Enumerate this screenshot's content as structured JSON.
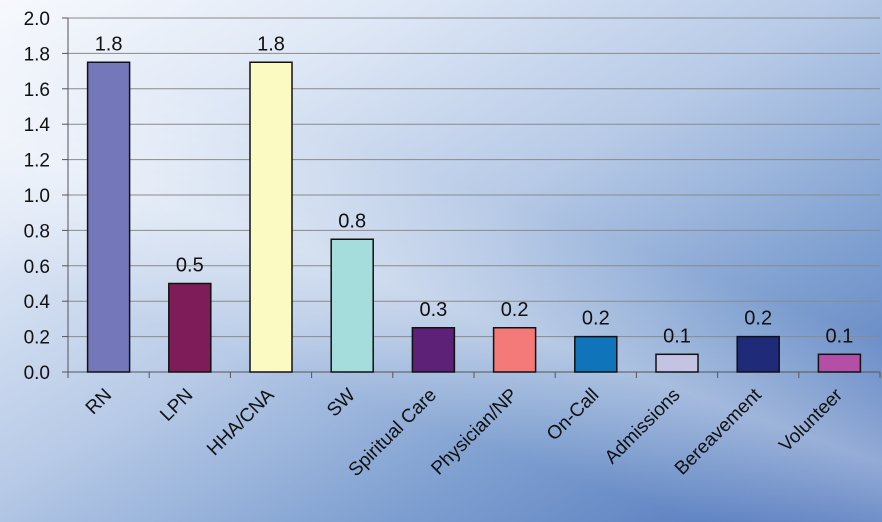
{
  "chart_data": {
    "type": "bar",
    "categories": [
      "RN",
      "LPN",
      "HHA/CNA",
      "SW",
      "Spiritual Care",
      "Physician/NP",
      "On-Call",
      "Admissions",
      "Bereavement",
      "Volunteer"
    ],
    "values": [
      1.75,
      0.5,
      1.75,
      0.75,
      0.25,
      0.25,
      0.2,
      0.1,
      0.2,
      0.1
    ],
    "data_labels": [
      "1.8",
      "0.5",
      "1.8",
      "0.8",
      "0.3",
      "0.2",
      "0.2",
      "0.1",
      "0.2",
      "0.1"
    ],
    "colors": [
      "#7478bb",
      "#7e1c5a",
      "#fbfac3",
      "#a4dddc",
      "#5d2177",
      "#f47a7a",
      "#0f74b9",
      "#c5c3e4",
      "#1f2a78",
      "#b44fa7"
    ],
    "yticks": [
      "0.0",
      "0.2",
      "0.4",
      "0.6",
      "0.8",
      "1.0",
      "1.2",
      "1.4",
      "1.6",
      "1.8",
      "2.0"
    ],
    "ylim": [
      0,
      2.0
    ],
    "grid": true,
    "title": "",
    "xlabel": "",
    "ylabel": ""
  }
}
